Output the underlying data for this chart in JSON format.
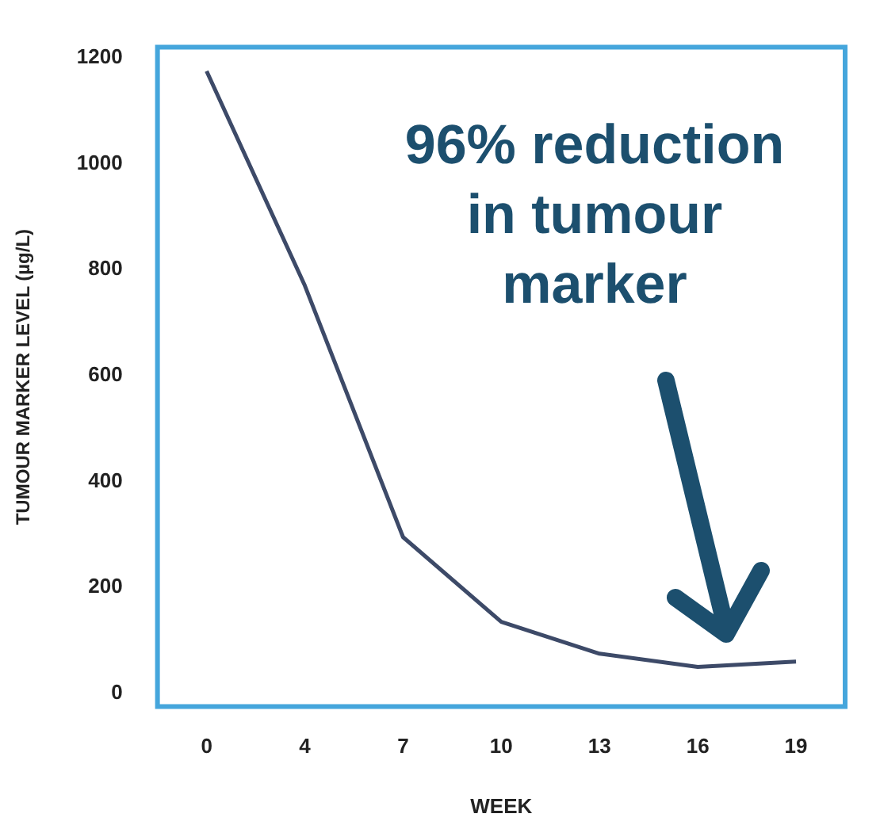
{
  "chart_data": {
    "type": "line",
    "xlabel": "WEEK",
    "ylabel": "TUMOUR MARKER LEVEL (µg/L)",
    "categories": [
      "0",
      "4",
      "7",
      "10",
      "13",
      "16",
      "19"
    ],
    "series": [
      {
        "color": "#3d4a68",
        "values": [
          1175,
          770,
          295,
          135,
          75,
          50,
          60
        ]
      }
    ],
    "ylim": [
      -25,
      1220
    ],
    "yticks": [
      0,
      200,
      400,
      600,
      800,
      1000,
      1200
    ],
    "grid": false,
    "legend": false,
    "marker": "none",
    "line_style": "solid",
    "annotations": [
      "96% reduction in tumour marker"
    ]
  }
}
